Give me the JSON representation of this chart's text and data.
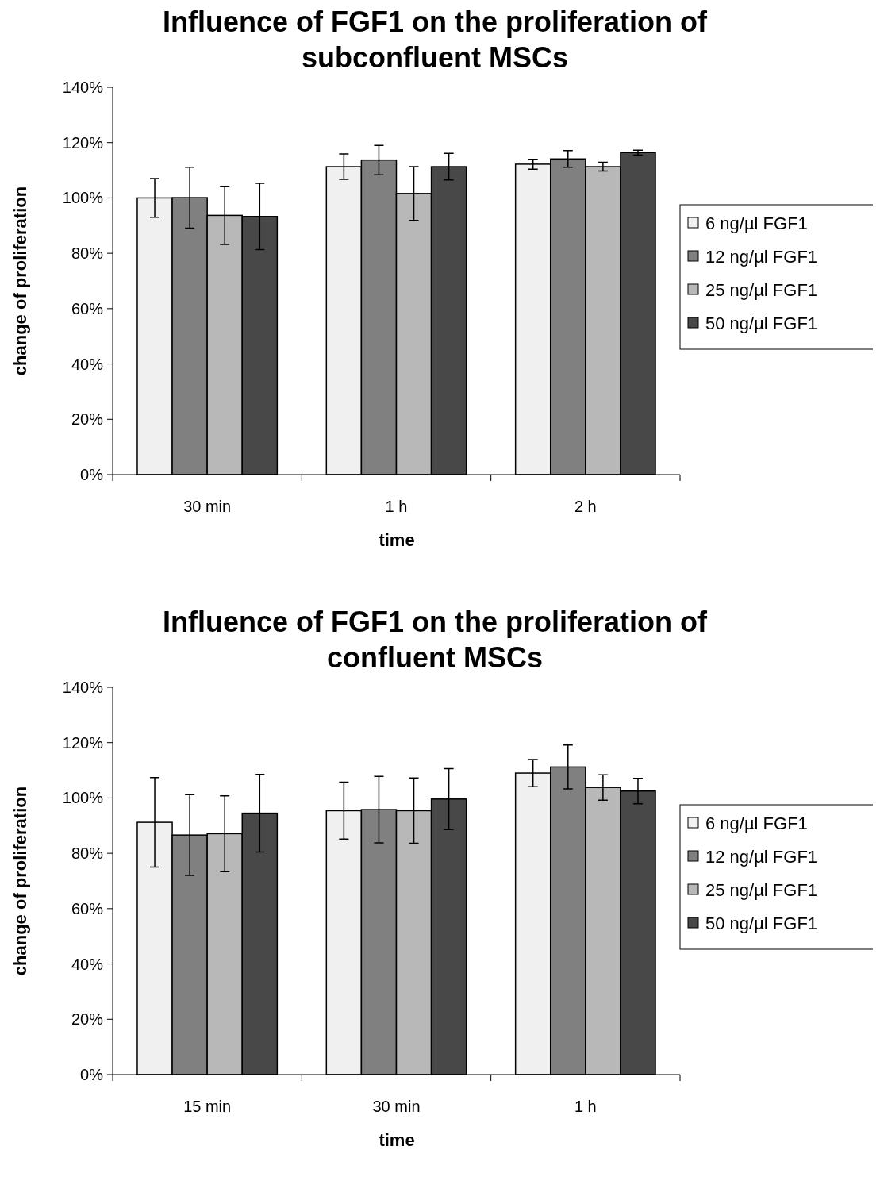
{
  "chart_data": [
    {
      "type": "bar",
      "title": "Influence of FGF1 on the proliferation of subconfluent MSCs",
      "xlabel": "time",
      "ylabel": "change of proliferation",
      "categories": [
        "30 min",
        "1 h",
        "2 h"
      ],
      "ylim": [
        0,
        140
      ],
      "yticks": [
        {
          "value": 0,
          "label": "0%"
        },
        {
          "value": 20,
          "label": "20%"
        },
        {
          "value": 40,
          "label": "40%"
        },
        {
          "value": 60,
          "label": "60%"
        },
        {
          "value": 80,
          "label": "80%"
        },
        {
          "value": 100,
          "label": "100%"
        },
        {
          "value": 120,
          "label": "120%"
        },
        {
          "value": 140,
          "label": "140%"
        }
      ],
      "legend": "right",
      "grid": false,
      "series": [
        {
          "name": "6 ng/µl FGF1",
          "color": "#f0f0f0",
          "values": [
            100,
            111.3,
            112.2
          ],
          "errors": [
            7,
            4.6,
            1.8
          ]
        },
        {
          "name": "12 ng/µl FGF1",
          "color": "#808080",
          "values": [
            100.1,
            113.7,
            114.1
          ],
          "errors": [
            11,
            5.3,
            3
          ]
        },
        {
          "name": "25 ng/µl FGF1",
          "color": "#b8b8b8",
          "values": [
            93.7,
            101.6,
            111.3
          ],
          "errors": [
            10.5,
            9.7,
            1.6
          ]
        },
        {
          "name": "50 ng/µl FGF1",
          "color": "#484848",
          "values": [
            93.3,
            111.3,
            116.4
          ],
          "errors": [
            12,
            4.8,
            0.9
          ]
        }
      ]
    },
    {
      "type": "bar",
      "title": "Influence of FGF1 on the proliferation of confluent MSCs",
      "xlabel": "time",
      "ylabel": "change of proliferation",
      "categories": [
        "15 min",
        "30 min",
        "1 h"
      ],
      "ylim": [
        0,
        140
      ],
      "yticks": [
        {
          "value": 0,
          "label": "0%"
        },
        {
          "value": 20,
          "label": "20%"
        },
        {
          "value": 40,
          "label": "40%"
        },
        {
          "value": 60,
          "label": "60%"
        },
        {
          "value": 80,
          "label": "80%"
        },
        {
          "value": 100,
          "label": "100%"
        },
        {
          "value": 120,
          "label": "120%"
        },
        {
          "value": 140,
          "label": "140%"
        }
      ],
      "legend": "right",
      "grid": false,
      "series": [
        {
          "name": "6 ng/µl FGF1",
          "color": "#f0f0f0",
          "values": [
            91.2,
            95.4,
            109
          ],
          "errors": [
            16.2,
            10.3,
            4.9
          ]
        },
        {
          "name": "12 ng/µl FGF1",
          "color": "#808080",
          "values": [
            86.6,
            95.8,
            111.2
          ],
          "errors": [
            14.6,
            12,
            7.9
          ]
        },
        {
          "name": "25 ng/µl FGF1",
          "color": "#b8b8b8",
          "values": [
            87.1,
            95.4,
            103.8
          ],
          "errors": [
            13.7,
            11.8,
            4.6
          ]
        },
        {
          "name": "50 ng/µl FGF1",
          "color": "#484848",
          "values": [
            94.5,
            99.6,
            102.5
          ],
          "errors": [
            14,
            11,
            4.6
          ]
        }
      ]
    }
  ]
}
